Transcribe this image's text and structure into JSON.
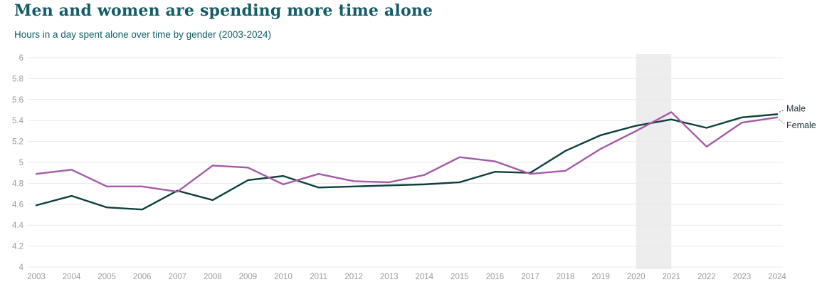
{
  "header": {
    "title": "Men and women are spending more time alone",
    "subtitle": "Hours in a day spent alone over time by gender (2003-2024)"
  },
  "chart_data": {
    "type": "line",
    "title": "Men and women are spending more time alone",
    "subtitle": "Hours in a day spent alone over time by gender (2003-2024)",
    "x": [
      2003,
      2004,
      2005,
      2006,
      2007,
      2008,
      2009,
      2010,
      2011,
      2012,
      2013,
      2014,
      2015,
      2016,
      2017,
      2018,
      2019,
      2020,
      2021,
      2022,
      2023,
      2024
    ],
    "x_labels": [
      "2003",
      "2004",
      "2005",
      "2006",
      "2007",
      "2008",
      "2009",
      "2010",
      "2011",
      "2012",
      "2013",
      "2014",
      "2015",
      "2016",
      "2017",
      "2018",
      "2019",
      "2020",
      "2021",
      "2022",
      "2023",
      "2024"
    ],
    "series": [
      {
        "name": "Male",
        "color": "#0e403e",
        "values": [
          4.59,
          4.68,
          4.57,
          4.55,
          4.73,
          4.64,
          4.83,
          4.87,
          4.76,
          4.77,
          4.78,
          4.79,
          4.81,
          4.91,
          4.9,
          5.11,
          5.26,
          5.35,
          5.41,
          5.33,
          5.43,
          5.46
        ]
      },
      {
        "name": "Female",
        "color": "#a55aa5",
        "values": [
          4.89,
          4.93,
          4.77,
          4.77,
          4.72,
          4.97,
          4.95,
          4.79,
          4.89,
          4.82,
          4.81,
          4.88,
          5.05,
          5.01,
          4.89,
          4.92,
          5.13,
          5.3,
          5.48,
          5.15,
          5.38,
          5.43
        ]
      }
    ],
    "ylim": [
      4,
      6
    ],
    "yticks": [
      4,
      4.2,
      4.4,
      4.6,
      4.8,
      5,
      5.2,
      5.4,
      5.6,
      5.8,
      6
    ],
    "ytick_labels": [
      "4",
      "4.2",
      "4.4",
      "4.6",
      "4.8",
      "5",
      "5.2",
      "5.4",
      "5.6",
      "5.8",
      "6"
    ],
    "xlabel": "",
    "ylabel": "",
    "grid": "horizontal",
    "grid_color": "#e8e8e8",
    "tick_color": "#9b9b9b",
    "end_label_color": "#233744",
    "legend_position": "line-end-labels",
    "highlight_band": {
      "from": 2020,
      "to": 2021,
      "color": "#ededed"
    }
  }
}
